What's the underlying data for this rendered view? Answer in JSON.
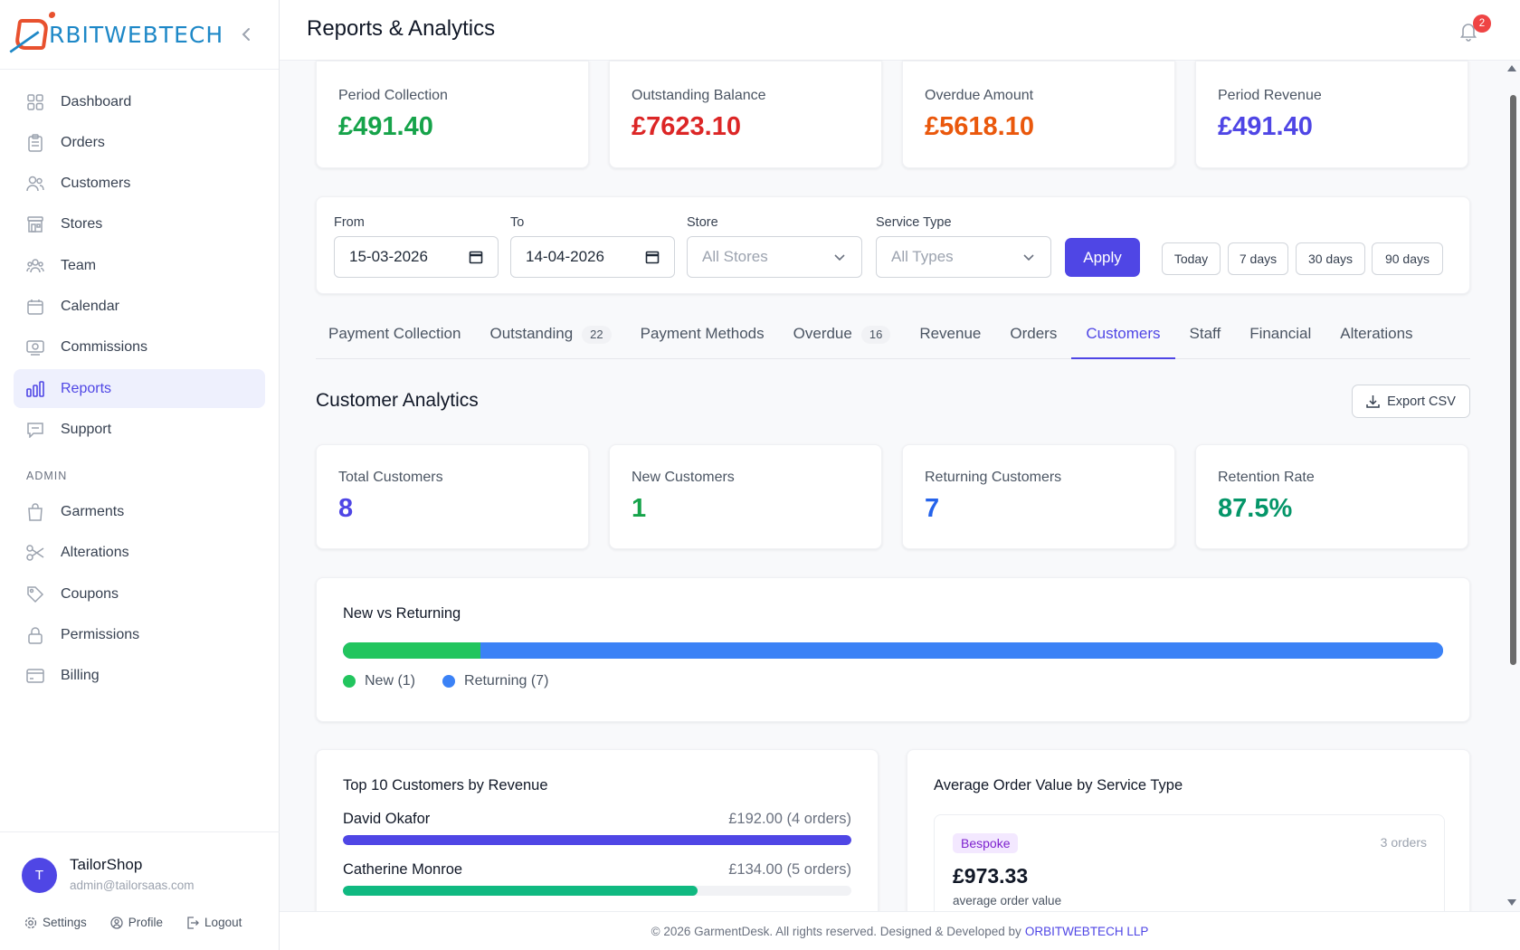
{
  "brand": {
    "prefix": "",
    "name": "RBITWEBTECH"
  },
  "sidebar": {
    "items": [
      {
        "label": "Dashboard",
        "icon": "grid-icon"
      },
      {
        "label": "Orders",
        "icon": "clipboard-icon"
      },
      {
        "label": "Customers",
        "icon": "users-icon"
      },
      {
        "label": "Stores",
        "icon": "store-icon"
      },
      {
        "label": "Team",
        "icon": "team-icon"
      },
      {
        "label": "Calendar",
        "icon": "calendar-icon"
      },
      {
        "label": "Commissions",
        "icon": "commission-icon"
      },
      {
        "label": "Reports",
        "icon": "bar-chart-icon",
        "active": true
      },
      {
        "label": "Support",
        "icon": "chat-icon"
      }
    ],
    "admin_section": "ADMIN",
    "admin_items": [
      {
        "label": "Garments",
        "icon": "bag-icon"
      },
      {
        "label": "Alterations",
        "icon": "scissors-icon"
      },
      {
        "label": "Coupons",
        "icon": "tag-icon"
      },
      {
        "label": "Permissions",
        "icon": "lock-icon"
      },
      {
        "label": "Billing",
        "icon": "card-icon"
      }
    ],
    "user": {
      "initial": "T",
      "name": "TailorShop",
      "email": "admin@tailorsaas.com",
      "links": {
        "settings": "Settings",
        "profile": "Profile",
        "logout": "Logout"
      }
    }
  },
  "header": {
    "title": "Reports & Analytics",
    "notifications": "2"
  },
  "summary": [
    {
      "label": "Period Collection",
      "value": "£491.40",
      "color": "#16a34a"
    },
    {
      "label": "Outstanding Balance",
      "value": "£7623.10",
      "color": "#dc2626"
    },
    {
      "label": "Overdue Amount",
      "value": "£5618.10",
      "color": "#ea580c"
    },
    {
      "label": "Period Revenue",
      "value": "£491.40",
      "color": "#4f46e5"
    }
  ],
  "filters": {
    "from_label": "From",
    "from_value": "15-03-2026",
    "to_label": "To",
    "to_value": "14-04-2026",
    "store_label": "Store",
    "store_value": "All Stores",
    "service_label": "Service Type",
    "service_value": "All Types",
    "apply": "Apply",
    "quick": [
      "Today",
      "7 days",
      "30 days",
      "90 days"
    ]
  },
  "tabs": [
    {
      "label": "Payment Collection",
      "badge": ""
    },
    {
      "label": "Outstanding",
      "badge": "22"
    },
    {
      "label": "Payment Methods",
      "badge": ""
    },
    {
      "label": "Overdue",
      "badge": "16"
    },
    {
      "label": "Revenue",
      "badge": ""
    },
    {
      "label": "Orders",
      "badge": ""
    },
    {
      "label": "Customers",
      "badge": "",
      "active": true
    },
    {
      "label": "Staff",
      "badge": ""
    },
    {
      "label": "Financial",
      "badge": ""
    },
    {
      "label": "Alterations",
      "badge": ""
    }
  ],
  "section": {
    "title": "Customer Analytics",
    "export": "Export CSV"
  },
  "customer_stats": [
    {
      "label": "Total Customers",
      "value": "8",
      "color": "#4f46e5"
    },
    {
      "label": "New Customers",
      "value": "1",
      "color": "#16a34a"
    },
    {
      "label": "Returning Customers",
      "value": "7",
      "color": "#2563eb"
    },
    {
      "label": "Retention Rate",
      "value": "87.5%",
      "color": "#059669"
    }
  ],
  "new_vs_returning": {
    "title": "New vs Returning",
    "new_count": 1,
    "returning_count": 7,
    "new_label": "New (1)",
    "returning_label": "Returning (7)",
    "new_color": "#22c55e",
    "returning_color": "#3b82f6"
  },
  "top_customers": {
    "title": "Top 10 Customers by Revenue",
    "rows": [
      {
        "name": "David Okafor",
        "amount": "£192.00 (4 orders)",
        "fraction": 1.0,
        "color": "#4f46e5"
      },
      {
        "name": "Catherine Monroe",
        "amount": "£134.00 (5 orders)",
        "fraction": 0.698,
        "color": "#10b981"
      }
    ]
  },
  "aov": {
    "title": "Average Order Value by Service Type",
    "items": [
      {
        "badge": "Bespoke",
        "count": "3 orders",
        "value": "£973.33",
        "sub": "average order value"
      }
    ]
  },
  "footer": {
    "text": "© 2026 GarmentDesk. All rights reserved. Designed & Developed by",
    "link": "ORBITWEBTECH LLP"
  }
}
